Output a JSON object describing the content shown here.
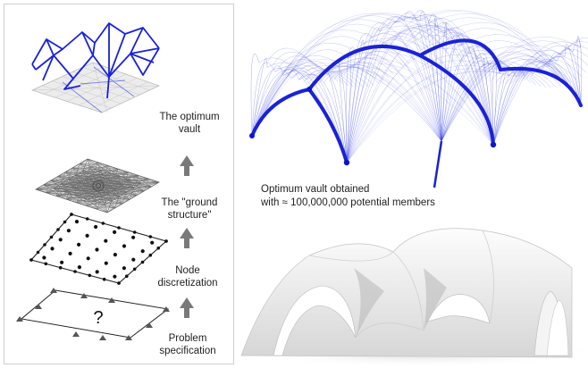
{
  "steps": [
    {
      "id": "optimum",
      "label_line1": "The optimum",
      "label_line2": "vault"
    },
    {
      "id": "ground",
      "label_line1": "The \"ground",
      "label_line2": "structure\""
    },
    {
      "id": "node",
      "label_line1": "Node",
      "label_line2": "discretization"
    },
    {
      "id": "problem",
      "label_line1": "Problem",
      "label_line2": "specification"
    }
  ],
  "problem_mark": "?",
  "caption": {
    "line1": "Optimum vault obtained",
    "line2": "with ≈ 100,000,000 potential members"
  },
  "colors": {
    "vault_blue": "#1a22d6",
    "grey_mesh": "#8a8a8a",
    "arrow_grey": "#7a7a7a",
    "render_shadow": "#9a9a9a"
  }
}
